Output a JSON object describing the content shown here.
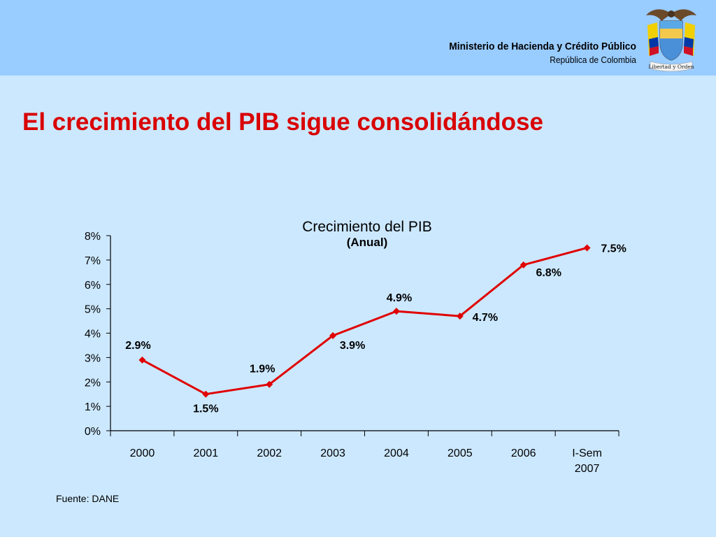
{
  "header": {
    "ministry": "Ministerio de Hacienda y Crédito Público",
    "country": "República de Colombia",
    "seal_motto": "Libertad y Orden"
  },
  "slide": {
    "title": "El crecimiento del PIB sigue consolidándose",
    "source": "Fuente: DANE"
  },
  "colors": {
    "header_bg": "#99ccff",
    "page_bg": "#cce8ff",
    "title": "#d90000",
    "series": "#e00000"
  },
  "chart_data": {
    "type": "line",
    "title": "Crecimiento del PIB",
    "subtitle": "(Anual)",
    "categories": [
      "2000",
      "2001",
      "2002",
      "2003",
      "2004",
      "2005",
      "2006",
      "I-Sem 2007"
    ],
    "series": [
      {
        "values": [
          2.9,
          1.5,
          1.9,
          3.9,
          4.9,
          4.7,
          6.8,
          7.5
        ],
        "labels": [
          "2.9%",
          "1.5%",
          "1.9%",
          "3.9%",
          "4.9%",
          "4.7%",
          "6.8%",
          "7.5%"
        ],
        "color": "#e00000"
      }
    ],
    "yticks": [
      "0%",
      "1%",
      "2%",
      "3%",
      "4%",
      "5%",
      "6%",
      "7%",
      "8%"
    ],
    "ylim": [
      0,
      8
    ],
    "grid": false,
    "legend": "none",
    "marker": "diamond"
  }
}
